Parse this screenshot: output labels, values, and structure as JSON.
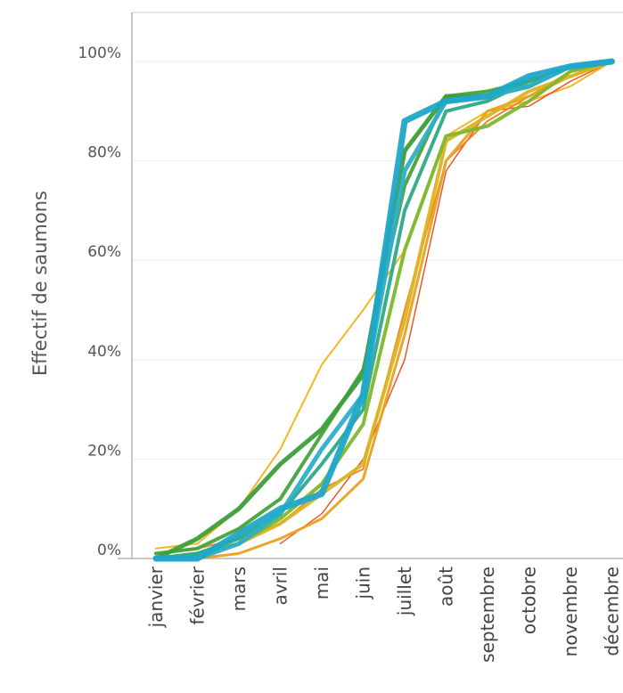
{
  "chart_data": {
    "type": "line",
    "title": "",
    "xlabel": "",
    "ylabel": "Effectif de saumons",
    "categories": [
      "janvier",
      "février",
      "mars",
      "avril",
      "mai",
      "juin",
      "juillet",
      "août",
      "septembre",
      "octobre",
      "novembre",
      "décembre"
    ],
    "y_ticks": [
      "0%",
      "20%",
      "40%",
      "60%",
      "80%",
      "100%"
    ],
    "ylim": [
      0,
      110
    ],
    "grid": "horizontal",
    "legend": "none",
    "series": [
      {
        "color": "#f5b319",
        "width": 2,
        "values": [
          2,
          3,
          10,
          22,
          39,
          50,
          62,
          85,
          90,
          92,
          95,
          100
        ]
      },
      {
        "color": "#ef4c1f",
        "width": 1.5,
        "values": [
          null,
          null,
          null,
          3,
          9,
          20,
          40,
          78,
          90,
          91,
          96,
          100
        ]
      },
      {
        "color": "#f3801c",
        "width": 2,
        "values": [
          1,
          2,
          4,
          7,
          14,
          18,
          50,
          80,
          88,
          93,
          98,
          100
        ]
      },
      {
        "color": "#e8a21d",
        "width": 3,
        "values": [
          0,
          0,
          1,
          4,
          8,
          16,
          45,
          80,
          90,
          93,
          97,
          100
        ]
      },
      {
        "color": "#dbb322",
        "width": 4,
        "values": [
          0,
          1,
          3,
          7,
          13,
          19,
          48,
          84,
          89,
          94,
          97,
          100
        ]
      },
      {
        "color": "#7db82c",
        "width": 4,
        "values": [
          0,
          1,
          3,
          8,
          15,
          27,
          62,
          85,
          87,
          92,
          98,
          100
        ]
      },
      {
        "color": "#46a33c",
        "width": 4,
        "values": [
          1,
          2,
          6,
          12,
          25,
          38,
          75,
          93,
          94,
          96,
          99,
          100
        ]
      },
      {
        "color": "#3e9e3b",
        "width": 5,
        "values": [
          0,
          4,
          10,
          19,
          26,
          37,
          82,
          93,
          93,
          95,
          99,
          100
        ]
      },
      {
        "color": "#2ea989",
        "width": 4,
        "values": [
          0,
          1,
          4,
          9,
          19,
          30,
          70,
          90,
          92,
          96,
          99,
          100
        ]
      },
      {
        "color": "#2eaec9",
        "width": 5,
        "values": [
          0,
          0,
          3,
          9,
          22,
          33,
          78,
          92,
          93,
          95,
          99,
          100
        ]
      },
      {
        "color": "#20a6c9",
        "width": 7,
        "values": [
          0,
          0,
          5,
          10,
          13,
          33,
          88,
          92,
          93,
          97,
          99,
          100
        ]
      }
    ]
  }
}
